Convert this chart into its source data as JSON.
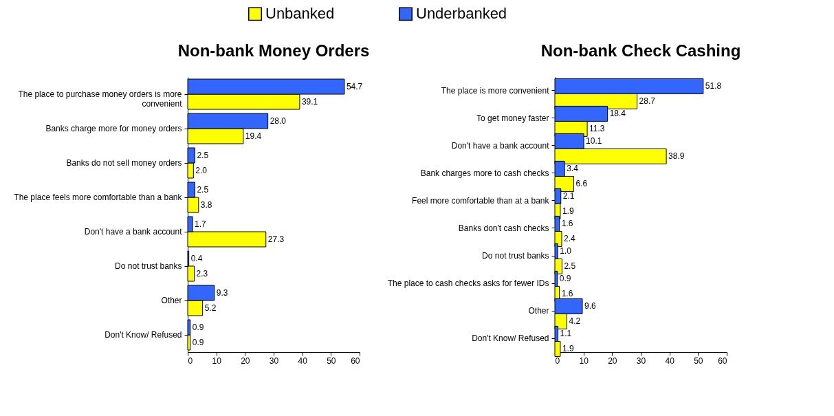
{
  "chart_data": [
    {
      "type": "bar",
      "orientation": "horizontal",
      "title": "Non-bank Money Orders",
      "categories": [
        "The place to purchase money orders is more convenient",
        "Banks charge more for money orders",
        "Banks do not sell money orders",
        "The place feels more comfortable than a bank",
        "Don't have a bank account",
        "Do not trust banks",
        "Other",
        "Don't Know/ Refused"
      ],
      "series": [
        {
          "name": "Unbanked",
          "color": "#ffff00",
          "values": [
            39.1,
            19.4,
            2.0,
            3.8,
            27.3,
            2.3,
            5.2,
            0.9
          ],
          "value_labels": [
            "39.1",
            "19.4",
            "2.0",
            "3.8",
            "27.3",
            "2.3",
            "5.2",
            "0.9"
          ]
        },
        {
          "name": "Underbanked",
          "color": "#3366ff",
          "values": [
            54.7,
            28.0,
            2.5,
            2.5,
            1.7,
            0.4,
            9.3,
            0.9
          ],
          "value_labels": [
            "54.7",
            "28.0",
            "2.5",
            "2.5",
            "1.7",
            "0.4",
            "9.3",
            "0.9"
          ]
        }
      ],
      "xlim": [
        0,
        60
      ],
      "xticks": [
        0,
        10,
        20,
        30,
        40,
        50,
        60
      ],
      "legend": "top"
    },
    {
      "type": "bar",
      "orientation": "horizontal",
      "title": "Non-bank Check Cashing",
      "categories": [
        "The place is more convenient",
        "To get money faster",
        "Don't have a bank account",
        "Bank charges more to cash checks",
        "Feel more comfortable than at a bank",
        "Banks don't cash checks",
        "Do not trust banks",
        "The place to cash checks asks for fewer IDs",
        "Other",
        "Don't Know/ Refused"
      ],
      "series": [
        {
          "name": "Unbanked",
          "color": "#ffff00",
          "values": [
            28.7,
            11.3,
            38.9,
            6.6,
            1.9,
            2.4,
            2.5,
            1.6,
            4.2,
            1.9
          ],
          "value_labels": [
            "28.7",
            "11.3",
            "38.9",
            "6.6",
            "1.9",
            "2.4",
            "2.5",
            "1.6",
            "4.2",
            "1.9"
          ]
        },
        {
          "name": "Underbanked",
          "color": "#3366ff",
          "values": [
            51.8,
            18.4,
            10.1,
            3.4,
            2.1,
            1.6,
            1.0,
            0.9,
            9.6,
            1.1
          ],
          "value_labels": [
            "51.8",
            "18.4",
            "10.1",
            "3.4",
            "2.1",
            "1.6",
            "1.0",
            "0.9",
            "9.6",
            "1.1"
          ]
        }
      ],
      "xlim": [
        0,
        60
      ],
      "xticks": [
        0,
        10,
        20,
        30,
        40,
        50,
        60
      ],
      "legend": "top"
    }
  ]
}
